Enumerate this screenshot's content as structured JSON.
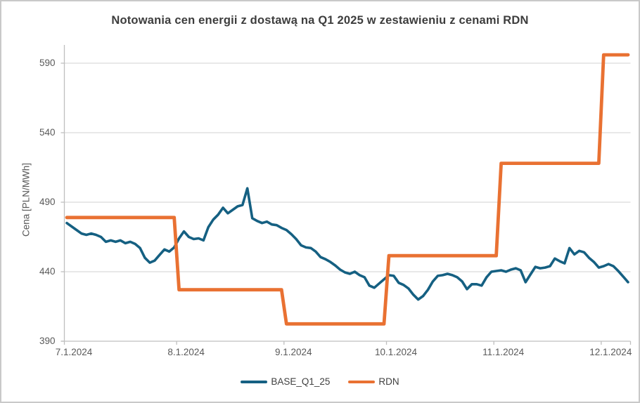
{
  "window": {
    "background": "#ffffff",
    "border_color": "#c9c9c9"
  },
  "chart_data": {
    "type": "line",
    "title": "Notowania cen energii z dostawą na Q1 2025 w zestawieniu z cenami RDN",
    "xlabel": "",
    "ylabel": "Cena [PLN/MWh]",
    "ylim": [
      390,
      603
    ],
    "yticks": [
      390,
      440,
      490,
      540,
      590
    ],
    "x_tick_labels": [
      "7.1.2024",
      "8.1.2024",
      "9.1.2024",
      "10.1.2024",
      "11.1.2024",
      "12.1.2024"
    ],
    "x_tick_day_indices": [
      0,
      23,
      45,
      66,
      88,
      110
    ],
    "n_points": 116,
    "grid": true,
    "legend_position": "bottom",
    "colors": {
      "gridline": "#d9d9d9",
      "axis": "#bfbfbf",
      "tick_label": "#595959",
      "title": "#3d3d3d"
    },
    "series": [
      {
        "name": "BASE_Q1_25",
        "color": "#156082",
        "stroke_width": 3.6,
        "values": [
          475,
          472.5,
          470,
          467.5,
          466.5,
          467.5,
          466.5,
          465,
          461.5,
          462.5,
          461.5,
          462.5,
          460.5,
          461.5,
          460,
          457,
          450,
          446.5,
          448,
          452,
          456,
          454.5,
          457.5,
          464,
          469,
          465,
          463.5,
          464,
          462.5,
          472,
          477.5,
          481,
          486,
          482,
          484.5,
          487,
          488,
          500,
          478.5,
          476.5,
          475,
          476,
          474,
          473.5,
          471.5,
          470,
          467,
          463.5,
          459,
          457.5,
          457,
          454.5,
          450.5,
          449,
          447,
          444.5,
          441.5,
          439.5,
          438.5,
          440,
          437.5,
          436,
          430,
          428.5,
          431.5,
          434.5,
          437.5,
          437,
          432,
          430.5,
          428,
          423.5,
          420,
          422.5,
          427,
          433,
          437,
          437.5,
          438.5,
          437.5,
          436,
          433,
          427.5,
          431,
          431,
          430,
          436,
          440,
          440.5,
          441,
          440,
          441.5,
          442.5,
          441,
          432.5,
          438,
          443.5,
          442.5,
          443,
          444,
          449.5,
          447.5,
          446,
          457,
          452.5,
          455,
          454,
          450,
          447,
          443,
          444,
          445.5,
          444,
          440.5,
          436.5,
          432.5
        ]
      },
      {
        "name": "RDN",
        "color": "#E97132",
        "stroke_width": 4.8,
        "values": [
          479,
          479,
          479,
          479,
          479,
          479,
          479,
          479,
          479,
          479,
          479,
          479,
          479,
          479,
          479,
          479,
          479,
          479,
          479,
          479,
          479,
          479,
          479,
          427,
          427,
          427,
          427,
          427,
          427,
          427,
          427,
          427,
          427,
          427,
          427,
          427,
          427,
          427,
          427,
          427,
          427,
          427,
          427,
          427,
          427,
          402.5,
          402.5,
          402.5,
          402.5,
          402.5,
          402.5,
          402.5,
          402.5,
          402.5,
          402.5,
          402.5,
          402.5,
          402.5,
          402.5,
          402.5,
          402.5,
          402.5,
          402.5,
          402.5,
          402.5,
          402.5,
          451.5,
          451.5,
          451.5,
          451.5,
          451.5,
          451.5,
          451.5,
          451.5,
          451.5,
          451.5,
          451.5,
          451.5,
          451.5,
          451.5,
          451.5,
          451.5,
          451.5,
          451.5,
          451.5,
          451.5,
          451.5,
          451.5,
          451.5,
          518,
          518,
          518,
          518,
          518,
          518,
          518,
          518,
          518,
          518,
          518,
          518,
          518,
          518,
          518,
          518,
          518,
          518,
          518,
          518,
          518,
          596,
          596,
          596,
          596,
          596,
          596
        ]
      }
    ]
  }
}
